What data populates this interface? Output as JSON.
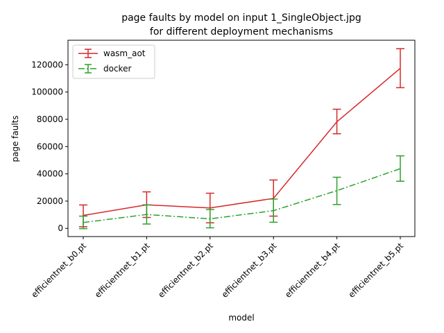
{
  "chart_data": {
    "type": "line",
    "title_line1": "page faults by model on input 1_SingleObject.jpg",
    "title_line2": "for different deployment mechanisms",
    "xlabel": "model",
    "ylabel": "page faults",
    "categories": [
      "efficientnet_b0.pt",
      "efficientnet_b1.pt",
      "efficientnet_b2.pt",
      "efficientnet_b3.pt",
      "efficientnet_b4.pt",
      "efficientnet_b5.pt"
    ],
    "ylim": [
      -6000,
      138000
    ],
    "yticks": [
      0,
      20000,
      40000,
      60000,
      80000,
      100000,
      120000
    ],
    "ytick_labels": [
      "0",
      "20000",
      "40000",
      "60000",
      "80000",
      "100000",
      "120000"
    ],
    "legend_position": "top-left",
    "series": [
      {
        "name": "wasm_aot",
        "color": "#d62728",
        "linestyle": "solid",
        "values": [
          9500,
          17300,
          15000,
          22000,
          78200,
          117400
        ],
        "err_low": [
          1200,
          8000,
          4100,
          9000,
          69400,
          103200
        ],
        "err_high": [
          17200,
          26800,
          25800,
          35500,
          87400,
          131800
        ]
      },
      {
        "name": "docker",
        "color": "#2ca02c",
        "linestyle": "dashdot",
        "values": [
          4300,
          10200,
          7000,
          13000,
          27700,
          43800
        ],
        "err_low": [
          -200,
          3200,
          400,
          4500,
          17500,
          34600
        ],
        "err_high": [
          9000,
          17300,
          13800,
          21500,
          37500,
          53200
        ]
      }
    ]
  }
}
